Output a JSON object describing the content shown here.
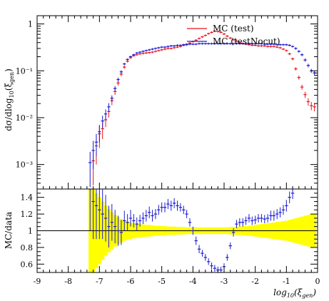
{
  "colors": {
    "test": "#e8141c",
    "testNocut": "#1b1bd6",
    "band": "#ffff00",
    "axis": "#000000"
  },
  "legend": {
    "position": "top-right",
    "entries": [
      {
        "label": "MC (test)",
        "color_key": "test"
      },
      {
        "label": "MC (testNocut)",
        "color_key": "testNocut"
      }
    ]
  },
  "chart_data": [
    {
      "type": "scatter",
      "ylabel": "dσ/dlog10(ξgen)",
      "yscale": "log",
      "xlim": [
        -9,
        0
      ],
      "ylim": [
        0.0003,
        1.5
      ],
      "yticks": [
        0.001,
        0.01,
        0.1,
        1
      ],
      "ytick_labels": [
        "10⁻³",
        "10⁻²",
        "10⁻¹",
        "1"
      ],
      "series": [
        {
          "name": "MC (test)",
          "color_key": "test",
          "x": [
            -7.2,
            -7.1,
            -7.0,
            -6.9,
            -6.8,
            -6.7,
            -6.6,
            -6.5,
            -6.4,
            -6.3,
            -6.2,
            -6.1,
            -6.0,
            -5.9,
            -5.8,
            -5.7,
            -5.6,
            -5.5,
            -5.4,
            -5.3,
            -5.2,
            -5.1,
            -5.0,
            -4.9,
            -4.8,
            -4.7,
            -4.6,
            -4.5,
            -4.4,
            -4.3,
            -4.2,
            -4.1,
            -4.0,
            -3.9,
            -3.8,
            -3.7,
            -3.6,
            -3.5,
            -3.4,
            -3.3,
            -3.2,
            -3.1,
            -3.0,
            -2.9,
            -2.8,
            -2.7,
            -2.6,
            -2.5,
            -2.4,
            -2.3,
            -2.2,
            -2.1,
            -2.0,
            -1.9,
            -1.8,
            -1.7,
            -1.6,
            -1.5,
            -1.4,
            -1.3,
            -1.2,
            -1.1,
            -1.0,
            -0.9,
            -0.8,
            -0.7,
            -0.6,
            -0.5,
            -0.4,
            -0.3,
            -0.2,
            -0.1
          ],
          "y": [
            0.0012,
            0.0025,
            0.0045,
            0.0058,
            0.009,
            0.0135,
            0.023,
            0.036,
            0.055,
            0.085,
            0.12,
            0.16,
            0.19,
            0.21,
            0.22,
            0.23,
            0.235,
            0.24,
            0.245,
            0.25,
            0.26,
            0.27,
            0.28,
            0.29,
            0.3,
            0.3,
            0.31,
            0.32,
            0.33,
            0.35,
            0.37,
            0.39,
            0.42,
            0.45,
            0.49,
            0.53,
            0.57,
            0.62,
            0.66,
            0.7,
            0.69,
            0.66,
            0.61,
            0.55,
            0.5,
            0.46,
            0.43,
            0.4,
            0.38,
            0.37,
            0.36,
            0.35,
            0.35,
            0.34,
            0.34,
            0.34,
            0.33,
            0.33,
            0.33,
            0.32,
            0.31,
            0.29,
            0.27,
            0.23,
            0.18,
            0.11,
            0.072,
            0.045,
            0.031,
            0.022,
            0.018,
            0.017
          ],
          "yerr_rel": [
            0.7,
            0.6,
            0.5,
            0.4,
            0.3,
            0.25,
            0.2,
            0.15,
            0.12,
            0.1,
            0.08,
            0.06,
            0.05,
            0.05,
            0.05,
            0.05,
            0.05,
            0.05,
            0.05,
            0.05,
            0.05,
            0.05,
            0.05,
            0.05,
            0.05,
            0.05,
            0.05,
            0.05,
            0.05,
            0.05,
            0.05,
            0.05,
            0.05,
            0.05,
            0.05,
            0.05,
            0.05,
            0.05,
            0.05,
            0.05,
            0.05,
            0.05,
            0.05,
            0.05,
            0.05,
            0.05,
            0.05,
            0.05,
            0.05,
            0.05,
            0.05,
            0.05,
            0.05,
            0.05,
            0.05,
            0.05,
            0.05,
            0.05,
            0.05,
            0.05,
            0.05,
            0.05,
            0.05,
            0.06,
            0.07,
            0.08,
            0.1,
            0.12,
            0.15,
            0.18,
            0.2,
            0.2
          ]
        },
        {
          "name": "MC (testNocut)",
          "color_key": "testNocut",
          "x": [
            -7.3,
            -7.2,
            -7.1,
            -7.0,
            -6.9,
            -6.8,
            -6.7,
            -6.6,
            -6.5,
            -6.4,
            -6.3,
            -6.2,
            -6.1,
            -6.0,
            -5.9,
            -5.8,
            -5.7,
            -5.6,
            -5.5,
            -5.4,
            -5.3,
            -5.2,
            -5.1,
            -5.0,
            -4.9,
            -4.8,
            -4.7,
            -4.6,
            -4.5,
            -4.4,
            -4.3,
            -4.2,
            -4.1,
            -4.0,
            -3.9,
            -3.8,
            -3.7,
            -3.6,
            -3.5,
            -3.4,
            -3.3,
            -3.2,
            -3.1,
            -3.0,
            -2.9,
            -2.8,
            -2.7,
            -2.6,
            -2.5,
            -2.4,
            -2.3,
            -2.2,
            -2.1,
            -2.0,
            -1.9,
            -1.8,
            -1.7,
            -1.6,
            -1.5,
            -1.4,
            -1.3,
            -1.2,
            -1.1,
            -1.0,
            -0.9,
            -0.8,
            -0.7,
            -0.6,
            -0.5,
            -0.4,
            -0.3,
            -0.2,
            -0.1
          ],
          "y": [
            0.0011,
            0.002,
            0.003,
            0.005,
            0.0085,
            0.012,
            0.017,
            0.026,
            0.042,
            0.065,
            0.095,
            0.14,
            0.175,
            0.2,
            0.22,
            0.24,
            0.25,
            0.26,
            0.27,
            0.28,
            0.29,
            0.3,
            0.31,
            0.32,
            0.32,
            0.33,
            0.34,
            0.34,
            0.35,
            0.35,
            0.36,
            0.36,
            0.37,
            0.37,
            0.37,
            0.38,
            0.38,
            0.38,
            0.38,
            0.38,
            0.38,
            0.38,
            0.38,
            0.38,
            0.38,
            0.38,
            0.38,
            0.38,
            0.38,
            0.38,
            0.38,
            0.38,
            0.38,
            0.38,
            0.38,
            0.38,
            0.37,
            0.37,
            0.37,
            0.37,
            0.36,
            0.36,
            0.36,
            0.36,
            0.35,
            0.33,
            0.3,
            0.26,
            0.22,
            0.17,
            0.13,
            0.1,
            0.09
          ],
          "yerr_rel": [
            0.7,
            0.6,
            0.5,
            0.4,
            0.3,
            0.25,
            0.2,
            0.15,
            0.12,
            0.1,
            0.08,
            0.06,
            0.05,
            0.05,
            0.05,
            0.05,
            0.05,
            0.05,
            0.05,
            0.05,
            0.05,
            0.05,
            0.05,
            0.05,
            0.05,
            0.05,
            0.05,
            0.05,
            0.05,
            0.05,
            0.05,
            0.05,
            0.05,
            0.05,
            0.05,
            0.05,
            0.05,
            0.05,
            0.05,
            0.05,
            0.05,
            0.05,
            0.05,
            0.05,
            0.05,
            0.05,
            0.05,
            0.05,
            0.05,
            0.05,
            0.05,
            0.05,
            0.05,
            0.05,
            0.05,
            0.05,
            0.05,
            0.05,
            0.05,
            0.05,
            0.05,
            0.05,
            0.05,
            0.05,
            0.05,
            0.05,
            0.06,
            0.06,
            0.07,
            0.08,
            0.09,
            0.1,
            0.1
          ]
        }
      ]
    },
    {
      "type": "scatter",
      "ylabel": "MC/data",
      "xlabel": "log10(ξgen)",
      "xlim": [
        -9,
        0
      ],
      "ylim": [
        0.5,
        1.5
      ],
      "xticks": [
        -9,
        -8,
        -7,
        -6,
        -5,
        -4,
        -3,
        -2,
        -1,
        0
      ],
      "yticks": [
        0.6,
        0.8,
        1,
        1.2,
        1.4
      ],
      "ytick_labels": [
        "0.6",
        "0.8",
        "1",
        "1.2",
        "1.4"
      ],
      "reference_line": 1,
      "uncertainty_band": {
        "color_key": "band",
        "x": [
          -7.3,
          -7.2,
          -7.1,
          -7.0,
          -6.9,
          -6.8,
          -6.7,
          -6.6,
          -6.5,
          -6.4,
          -6.3,
          -6.2,
          -6.1,
          -6.0,
          -5.9,
          -5.8,
          -5.7,
          -5.6,
          -5.5,
          -5.4,
          -5.3,
          -5.2,
          -5.1,
          -5.0,
          -4.9,
          -4.8,
          -4.7,
          -4.6,
          -4.5,
          -4.4,
          -4.3,
          -4.2,
          -4.1,
          -4.0,
          -3.9,
          -3.8,
          -3.7,
          -3.6,
          -3.5,
          -3.4,
          -3.3,
          -3.2,
          -3.1,
          -3.0,
          -2.9,
          -2.8,
          -2.7,
          -2.6,
          -2.5,
          -2.4,
          -2.3,
          -2.2,
          -2.1,
          -2.0,
          -1.9,
          -1.8,
          -1.7,
          -1.6,
          -1.5,
          -1.4,
          -1.3,
          -1.2,
          -1.1,
          -1.0,
          -0.9,
          -0.8,
          -0.7,
          -0.6,
          -0.5,
          -0.4,
          -0.3,
          -0.2,
          -0.1
        ],
        "half_width": [
          0.55,
          0.5,
          0.45,
          0.4,
          0.35,
          0.3,
          0.26,
          0.22,
          0.19,
          0.16,
          0.14,
          0.12,
          0.11,
          0.1,
          0.09,
          0.085,
          0.08,
          0.075,
          0.07,
          0.07,
          0.065,
          0.06,
          0.06,
          0.055,
          0.055,
          0.05,
          0.05,
          0.05,
          0.045,
          0.045,
          0.045,
          0.04,
          0.04,
          0.04,
          0.04,
          0.04,
          0.04,
          0.04,
          0.04,
          0.04,
          0.04,
          0.04,
          0.04,
          0.04,
          0.04,
          0.045,
          0.045,
          0.05,
          0.05,
          0.055,
          0.055,
          0.06,
          0.065,
          0.07,
          0.075,
          0.08,
          0.085,
          0.09,
          0.095,
          0.1,
          0.105,
          0.11,
          0.115,
          0.12,
          0.13,
          0.14,
          0.15,
          0.16,
          0.17,
          0.18,
          0.19,
          0.2,
          0.2
        ]
      },
      "series": [
        {
          "name": "MC (testNocut)",
          "color_key": "testNocut",
          "x": [
            -7.3,
            -7.2,
            -7.1,
            -7.0,
            -6.9,
            -6.8,
            -6.7,
            -6.6,
            -6.5,
            -6.4,
            -6.3,
            -6.2,
            -6.1,
            -6.0,
            -5.9,
            -5.8,
            -5.7,
            -5.6,
            -5.5,
            -5.4,
            -5.3,
            -5.2,
            -5.1,
            -5.0,
            -4.9,
            -4.8,
            -4.7,
            -4.6,
            -4.5,
            -4.4,
            -4.3,
            -4.2,
            -4.1,
            -4.0,
            -3.9,
            -3.8,
            -3.7,
            -3.6,
            -3.5,
            -3.4,
            -3.3,
            -3.2,
            -3.1,
            -3.0,
            -2.9,
            -2.8,
            -2.7,
            -2.6,
            -2.5,
            -2.4,
            -2.3,
            -2.2,
            -2.1,
            -2.0,
            -1.9,
            -1.8,
            -1.7,
            -1.6,
            -1.5,
            -1.4,
            -1.3,
            -1.2,
            -1.1,
            -1.0,
            -0.9,
            -0.8
          ],
          "y": [
            1.5,
            1.35,
            1.3,
            1.25,
            1.2,
            1.15,
            1.05,
            1.1,
            1.05,
            1.0,
            0.98,
            1.12,
            1.1,
            1.15,
            1.12,
            1.08,
            1.12,
            1.15,
            1.18,
            1.22,
            1.18,
            1.2,
            1.25,
            1.28,
            1.28,
            1.32,
            1.3,
            1.33,
            1.3,
            1.28,
            1.25,
            1.2,
            1.1,
            1.0,
            0.88,
            0.78,
            0.73,
            0.68,
            0.63,
            0.58,
            0.55,
            0.53,
            0.53,
            0.57,
            0.68,
            0.82,
            0.98,
            1.08,
            1.1,
            1.1,
            1.12,
            1.15,
            1.12,
            1.13,
            1.15,
            1.15,
            1.14,
            1.15,
            1.18,
            1.18,
            1.2,
            1.22,
            1.25,
            1.3,
            1.4,
            1.45
          ],
          "yerr": [
            0.5,
            0.45,
            0.4,
            0.35,
            0.3,
            0.28,
            0.25,
            0.22,
            0.2,
            0.18,
            0.15,
            0.12,
            0.1,
            0.1,
            0.08,
            0.08,
            0.07,
            0.07,
            0.07,
            0.07,
            0.07,
            0.06,
            0.06,
            0.06,
            0.06,
            0.06,
            0.06,
            0.06,
            0.06,
            0.05,
            0.05,
            0.05,
            0.05,
            0.05,
            0.05,
            0.05,
            0.04,
            0.04,
            0.04,
            0.04,
            0.04,
            0.04,
            0.04,
            0.04,
            0.04,
            0.04,
            0.05,
            0.05,
            0.05,
            0.05,
            0.05,
            0.05,
            0.05,
            0.05,
            0.05,
            0.05,
            0.05,
            0.05,
            0.06,
            0.06,
            0.06,
            0.06,
            0.06,
            0.07,
            0.07,
            0.07
          ]
        }
      ]
    }
  ]
}
